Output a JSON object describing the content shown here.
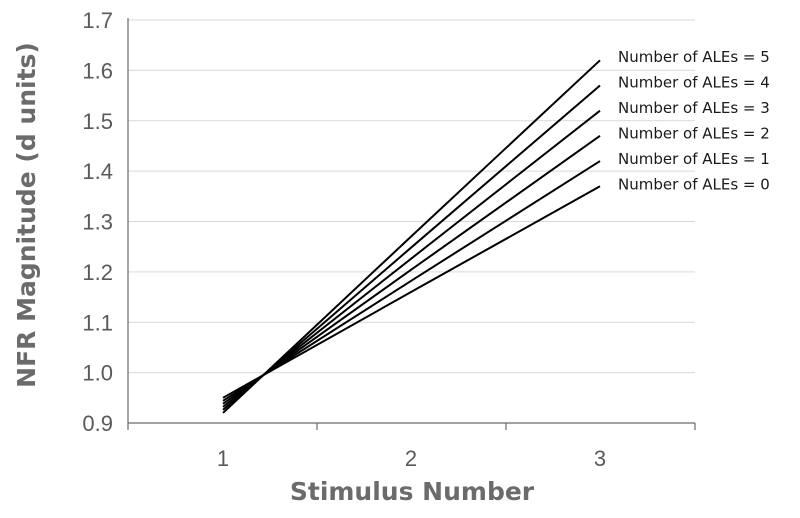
{
  "chart_data": {
    "type": "line",
    "title": "",
    "xlabel": "Stimulus Number",
    "ylabel": "NFR Magnitude (d units)",
    "x": [
      1,
      2,
      3
    ],
    "x_tick_labels": [
      "1",
      "2",
      "3"
    ],
    "ylim": [
      0.9,
      1.7
    ],
    "y_ticks": [
      0.9,
      1.0,
      1.1,
      1.2,
      1.3,
      1.4,
      1.5,
      1.6,
      1.7
    ],
    "y_tick_labels": [
      "0.9",
      "1.0",
      "1.1",
      "1.2",
      "1.3",
      "1.4",
      "1.5",
      "1.6",
      "1.7"
    ],
    "grid": true,
    "legend_placement": "right, at line ends",
    "series": [
      {
        "name": "Number of ALEs = 5",
        "values": [
          0.92,
          1.27,
          1.62
        ]
      },
      {
        "name": "Number of ALEs = 4",
        "values": [
          0.926,
          1.248,
          1.57
        ]
      },
      {
        "name": "Number of ALEs = 3",
        "values": [
          0.932,
          1.226,
          1.52
        ]
      },
      {
        "name": "Number of ALEs = 2",
        "values": [
          0.938,
          1.204,
          1.47
        ]
      },
      {
        "name": "Number of ALEs = 1",
        "values": [
          0.944,
          1.182,
          1.42
        ]
      },
      {
        "name": "Number of ALEs = 0",
        "values": [
          0.95,
          1.16,
          1.37
        ]
      }
    ],
    "line_color": "#000000"
  }
}
